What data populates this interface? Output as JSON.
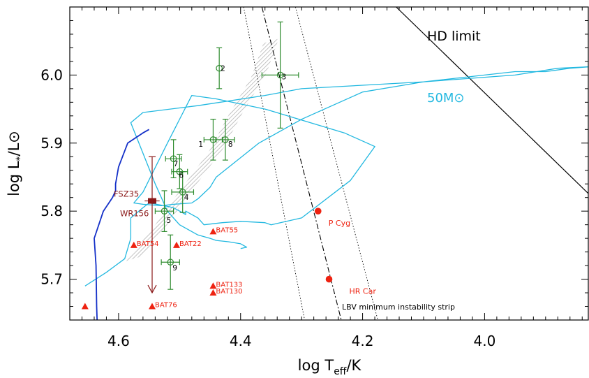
{
  "chart_data": {
    "type": "scatter",
    "xlabel": "log T_eff/K",
    "ylabel": "log L*/L⊙",
    "xlim": [
      4.68,
      3.83
    ],
    "ylim": [
      5.64,
      6.1
    ],
    "x_ticks": [
      4.6,
      4.4,
      4.2,
      4.0
    ],
    "y_ticks": [
      5.7,
      5.8,
      5.9,
      6.0
    ],
    "grid": false,
    "colors": {
      "stars": "#2e8b2e",
      "track_light": "#22b8e0",
      "track_dark": "#1430c8",
      "bat": "#ee2211",
      "lbv": "#ee2211",
      "fsz": "#8b1a1a",
      "strip": "#000000",
      "hd": "#000000",
      "band": "#c8c8c8"
    },
    "stars": [
      {
        "label": "2",
        "x": 4.435,
        "y": 6.01,
        "xerr": 0,
        "yerr": 0.03
      },
      {
        "label": "3",
        "x": 4.335,
        "y": 6.0,
        "xerr": 0.03,
        "yerr": 0.078
      },
      {
        "label": "1",
        "x": 4.445,
        "y": 5.905,
        "xerr": 0.015,
        "yerr": 0.03
      },
      {
        "label": "8",
        "x": 4.425,
        "y": 5.905,
        "xerr": 0.015,
        "yerr": 0.03
      },
      {
        "label": "7",
        "x": 4.51,
        "y": 5.877,
        "xerr": 0.013,
        "yerr": 0.028
      },
      {
        "label": "6",
        "x": 4.5,
        "y": 5.858,
        "xerr": 0.013,
        "yerr": 0.025
      },
      {
        "label": "4",
        "x": 4.495,
        "y": 5.828,
        "xerr": 0.018,
        "yerr": 0.03
      },
      {
        "label": "5",
        "x": 4.525,
        "y": 5.8,
        "xerr": 0.015,
        "yerr": 0.03
      },
      {
        "label": "9",
        "x": 4.515,
        "y": 5.725,
        "xerr": 0.015,
        "yerr": 0.04
      }
    ],
    "bat_stars": [
      {
        "label": "BAT55",
        "x": 4.445,
        "y": 5.77
      },
      {
        "label": "BAT54",
        "x": 4.575,
        "y": 5.75
      },
      {
        "label": "BAT22",
        "x": 4.505,
        "y": 5.75
      },
      {
        "label": "BAT133",
        "x": 4.445,
        "y": 5.69
      },
      {
        "label": "BAT130",
        "x": 4.445,
        "y": 5.68
      },
      {
        "label": "BAT76",
        "x": 4.545,
        "y": 5.66
      },
      {
        "label": "",
        "x": 4.655,
        "y": 5.66
      }
    ],
    "lbvs": [
      {
        "label": "P Cyg",
        "x": 4.273,
        "y": 5.8
      },
      {
        "label": "HR Car",
        "x": 4.255,
        "y": 5.7
      }
    ],
    "fsz35": {
      "label": "FSZ35",
      "x": 4.545,
      "y": 5.815,
      "xerr": 0.01,
      "y_upper": 5.88,
      "y_arrow_to": 5.68
    },
    "wr156_label": "WR156",
    "hd_limit": {
      "label": "HD limit",
      "x": [
        4.145,
        3.83
      ],
      "y": [
        6.1,
        5.826
      ]
    },
    "track_label": "50M⊙",
    "strip_label": "LBV minimum instability strip",
    "strip_center": {
      "x": [
        4.365,
        4.235
      ],
      "y": [
        6.1,
        5.64
      ]
    },
    "strip_left": {
      "x": [
        4.395,
        4.295
      ],
      "y": [
        6.1,
        5.64
      ]
    },
    "strip_right": {
      "x": [
        4.31,
        4.175
      ],
      "y": [
        6.1,
        5.64
      ]
    },
    "track_light": {
      "x": [
        4.655,
        4.62,
        4.59,
        4.58,
        4.58,
        4.56,
        4.55,
        4.525,
        4.51,
        4.49,
        4.49,
        4.47,
        4.46,
        4.43,
        4.4,
        4.36,
        4.35,
        4.3,
        4.22,
        4.18,
        4.23,
        4.36,
        4.44,
        4.48,
        4.52,
        4.56,
        4.575,
        4.56,
        4.53,
        4.51,
        4.48,
        4.47,
        4.45,
        4.44,
        4.37,
        4.3,
        4.2,
        4.1,
        4.0,
        3.95,
        3.9,
        3.86,
        3.83,
        3.88,
        3.95,
        4.1,
        4.2,
        4.3,
        4.36,
        4.47,
        4.56,
        4.58,
        4.56,
        4.54,
        4.52,
        4.5,
        4.48,
        4.47,
        4.45,
        4.44,
        4.42,
        4.4,
        4.39,
        4.4
      ],
      "y": [
        5.69,
        5.71,
        5.73,
        5.76,
        5.79,
        5.805,
        5.812,
        5.808,
        5.805,
        5.795,
        5.8,
        5.79,
        5.78,
        5.783,
        5.785,
        5.783,
        5.78,
        5.79,
        5.845,
        5.895,
        5.915,
        5.95,
        5.965,
        5.97,
        5.9,
        5.828,
        5.812,
        5.81,
        5.808,
        5.81,
        5.812,
        5.818,
        5.835,
        5.85,
        5.9,
        5.935,
        5.975,
        5.99,
        6.0,
        6.005,
        6.005,
        6.01,
        6.012,
        6.01,
        6.0,
        5.99,
        5.985,
        5.98,
        5.97,
        5.955,
        5.945,
        5.93,
        5.885,
        5.84,
        5.8,
        5.78,
        5.77,
        5.765,
        5.76,
        5.757,
        5.755,
        5.752,
        5.747,
        5.745
      ]
    },
    "track_dark": {
      "x": [
        4.635,
        4.636,
        4.637,
        4.64,
        4.625,
        4.61,
        4.605,
        4.605,
        4.6,
        4.585,
        4.56,
        4.55
      ],
      "y": [
        5.635,
        5.66,
        5.72,
        5.76,
        5.8,
        5.82,
        5.83,
        5.84,
        5.865,
        5.9,
        5.915,
        5.92
      ]
    },
    "band": {
      "x": [
        4.575,
        4.53,
        4.49,
        4.44,
        4.41,
        4.37,
        4.35
      ],
      "y": [
        5.73,
        5.78,
        5.83,
        5.89,
        5.94,
        6.0,
        6.05
      ]
    }
  }
}
